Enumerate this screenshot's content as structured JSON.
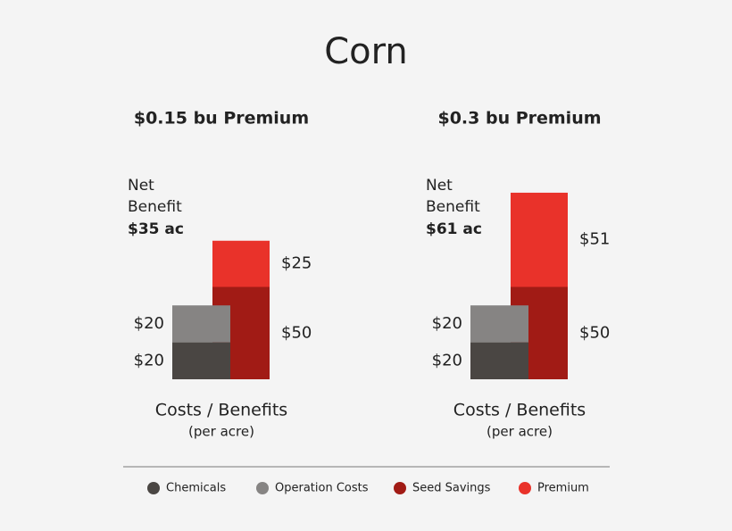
{
  "title": "Corn",
  "chart_data": [
    {
      "type": "stacked-bar",
      "title": "$0.15 bu Premium",
      "annotation": {
        "text": "Net Benefit",
        "value_label": "$35 ac"
      },
      "x_label": "Costs / Benefits",
      "x_sublabel": "(per acre)",
      "categories": [
        null,
        null
      ],
      "series": [
        {
          "name": "Chemicals",
          "color": "#4a4643",
          "values": [
            20,
            null
          ],
          "value_labels": [
            "$20",
            null
          ]
        },
        {
          "name": "Operation Costs",
          "color": "#868483",
          "values": [
            20,
            null
          ],
          "value_labels": [
            "$20",
            null
          ]
        },
        {
          "name": "Seed Savings",
          "color": "#a11b15",
          "values": [
            null,
            50
          ],
          "value_labels": [
            null,
            "$50"
          ]
        },
        {
          "name": "Premium",
          "color": "#e9322a",
          "values": [
            null,
            25
          ],
          "value_labels": [
            null,
            "$25"
          ]
        }
      ]
    },
    {
      "type": "stacked-bar",
      "title": "$0.3 bu Premium",
      "annotation": {
        "text": "Net Benefit",
        "value_label": "$61 ac"
      },
      "x_label": "Costs / Benefits",
      "x_sublabel": "(per acre)",
      "categories": [
        null,
        null
      ],
      "series": [
        {
          "name": "Chemicals",
          "color": "#4a4643",
          "values": [
            20,
            null
          ],
          "value_labels": [
            "$20",
            null
          ]
        },
        {
          "name": "Operation Costs",
          "color": "#868483",
          "values": [
            20,
            null
          ],
          "value_labels": [
            "$20",
            null
          ]
        },
        {
          "name": "Seed Savings",
          "color": "#a11b15",
          "values": [
            null,
            50
          ],
          "value_labels": [
            null,
            "$50"
          ]
        },
        {
          "name": "Premium",
          "color": "#e9322a",
          "values": [
            null,
            51
          ],
          "value_labels": [
            null,
            "$51"
          ]
        }
      ]
    }
  ]
}
